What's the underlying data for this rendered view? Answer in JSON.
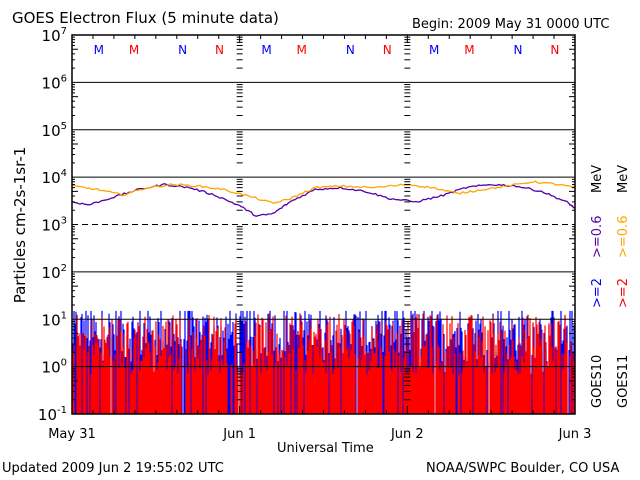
{
  "chart_data": {
    "type": "line",
    "title": "GOES Electron Flux (5 minute data)",
    "begin": "Begin: 2009 May 31 0000 UTC",
    "xlabel": "Universal Time",
    "ylabel": "Particles cm-2s-1sr-1",
    "y_scale": "log",
    "ylim": [
      0.1,
      10000000
    ],
    "xlim_days": [
      0,
      3
    ],
    "x_ticks": [
      {
        "day": 0,
        "label": "May 31"
      },
      {
        "day": 1,
        "label": "Jun 1"
      },
      {
        "day": 2,
        "label": "Jun 2"
      },
      {
        "day": 3,
        "label": "Jun 3"
      }
    ],
    "y_ticks": [
      {
        "exp": 7
      },
      {
        "exp": 6
      },
      {
        "exp": 5
      },
      {
        "exp": 4
      },
      {
        "exp": 3
      },
      {
        "exp": 2
      },
      {
        "exp": 1
      },
      {
        "exp": 0
      },
      {
        "exp": -1
      }
    ],
    "markers": [
      {
        "day": 0.16,
        "label": "M",
        "color": "#0000ff"
      },
      {
        "day": 0.37,
        "label": "M",
        "color": "#ff0000"
      },
      {
        "day": 0.66,
        "label": "N",
        "color": "#0000ff"
      },
      {
        "day": 0.88,
        "label": "N",
        "color": "#ff0000"
      },
      {
        "day": 1.16,
        "label": "M",
        "color": "#0000ff"
      },
      {
        "day": 1.37,
        "label": "M",
        "color": "#ff0000"
      },
      {
        "day": 1.66,
        "label": "N",
        "color": "#0000ff"
      },
      {
        "day": 1.88,
        "label": "N",
        "color": "#ff0000"
      },
      {
        "day": 2.16,
        "label": "M",
        "color": "#0000ff"
      },
      {
        "day": 2.37,
        "label": "M",
        "color": "#ff0000"
      },
      {
        "day": 2.66,
        "label": "N",
        "color": "#0000ff"
      },
      {
        "day": 2.88,
        "label": "N",
        "color": "#ff0000"
      }
    ],
    "series": [
      {
        "name": "GOES10 >=0.6 MeV",
        "color": "#5500aa",
        "kind": "line",
        "x": [
          0,
          0.1,
          0.25,
          0.4,
          0.55,
          0.7,
          0.85,
          1.0,
          1.1,
          1.2,
          1.3,
          1.45,
          1.6,
          1.75,
          1.9,
          2.05,
          2.2,
          2.35,
          2.5,
          2.65,
          2.8,
          2.95,
          3.0
        ],
        "y": [
          3000,
          2600,
          3800,
          5500,
          7000,
          6000,
          4200,
          2500,
          1500,
          1700,
          3000,
          5500,
          6000,
          5000,
          3500,
          3000,
          4000,
          6000,
          7000,
          6500,
          5000,
          3000,
          2200
        ]
      },
      {
        "name": "GOES11 >=0.6 MeV",
        "color": "#ffa500",
        "kind": "line",
        "x": [
          0,
          0.15,
          0.3,
          0.45,
          0.6,
          0.75,
          0.9,
          1.05,
          1.2,
          1.3,
          1.45,
          1.6,
          1.8,
          2.0,
          2.15,
          2.3,
          2.45,
          2.6,
          2.75,
          2.9,
          3.0
        ],
        "y": [
          6500,
          5500,
          4200,
          6000,
          7000,
          6500,
          5500,
          4000,
          2800,
          3500,
          6000,
          6500,
          6000,
          7000,
          6000,
          4500,
          5500,
          6500,
          8000,
          7000,
          6000
        ]
      },
      {
        "name": "GOES10 >=2 MeV",
        "color": "#0000ff",
        "kind": "noise",
        "floor": 0.1,
        "level": 5,
        "spread": 1.2
      },
      {
        "name": "GOES11 >=2 MeV",
        "color": "#ff0000",
        "kind": "noise",
        "floor": 0.1,
        "level": 3,
        "spread": 1.3
      }
    ],
    "right_labels": {
      "goes10_2": ">=2",
      "goes10_06": ">=0.6",
      "goes11_2": ">=2",
      "goes11_06": ">=0.6",
      "mev": "MeV",
      "goes10": "GOES10",
      "goes11": "GOES11"
    }
  },
  "footer": {
    "updated": "Updated 2009 Jun  2 19:55:02 UTC",
    "credit": "NOAA/SWPC Boulder, CO USA"
  }
}
